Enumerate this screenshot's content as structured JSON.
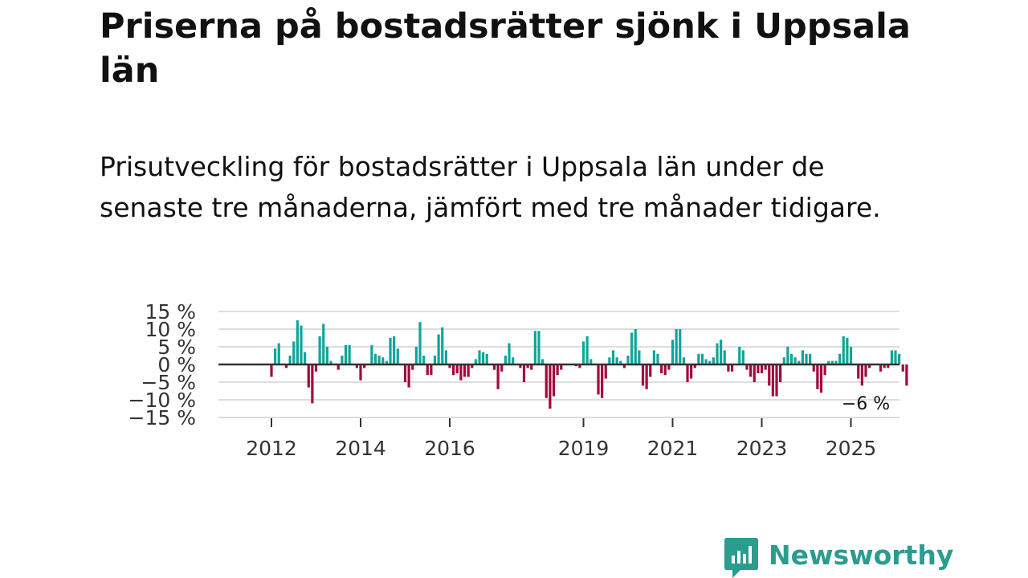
{
  "title": "Priserna på bostadsrätter sjönk i Uppsala län",
  "subtitle": "Prisutveckling för bostadsrätter i Uppsala län under de senaste tre månaderna, jämfört med tre månader tidigare.",
  "brand": {
    "name": "Newsworthy",
    "color": "#2a9d8f"
  },
  "colors": {
    "positive": "#10a59a",
    "negative": "#a3063e",
    "zero_line": "#333333",
    "grid": "#dddddd"
  },
  "chart_data": {
    "type": "bar",
    "title": "Priserna på bostadsrätter sjönk i Uppsala län",
    "xlabel": "",
    "ylabel": "",
    "y_unit": "%",
    "ylim": [
      -15,
      15
    ],
    "y_ticks": [
      15,
      10,
      5,
      0,
      -5,
      -10,
      -15
    ],
    "y_tick_labels": [
      "15 %",
      "10 %",
      "5 %",
      "0 %",
      "−5 %",
      "−10 %",
      "−15 %"
    ],
    "x_ticks": [
      2012,
      2014,
      2016,
      2019,
      2021,
      2023,
      2025
    ],
    "x_tick_labels": [
      "2012",
      "2014",
      "2016",
      "2019",
      "2021",
      "2023",
      "2025"
    ],
    "start": {
      "year": 2011,
      "month": 1
    },
    "frequency": "monthly",
    "end_label": "−6 %",
    "values": [
      0,
      0,
      0,
      0,
      0,
      0,
      0,
      0,
      0,
      0,
      0,
      0,
      -3.5,
      4.5,
      6,
      0,
      -1,
      2.5,
      6.5,
      12.5,
      11,
      3.5,
      -6.5,
      -11,
      -2,
      8,
      11.5,
      5,
      1,
      0,
      -1.5,
      2.5,
      5.5,
      5.5,
      0,
      -1,
      -4.5,
      -1,
      0,
      5.5,
      3,
      2.5,
      2,
      1,
      7.5,
      8,
      4.5,
      0,
      -5,
      -6.5,
      -1.5,
      5,
      12,
      2.5,
      -3,
      -3,
      2.5,
      8.5,
      10.5,
      4,
      -1,
      -3,
      -2.5,
      -4.5,
      -3.5,
      -3.5,
      -1,
      1.5,
      4,
      3.5,
      3,
      0,
      -1.5,
      -7,
      -2,
      2.5,
      6,
      2,
      0,
      -1,
      -5,
      -1,
      -1.5,
      9.5,
      9.5,
      1.5,
      -9.5,
      -12.5,
      -9,
      -3,
      -1.5,
      0,
      0,
      0,
      -0.5,
      -1,
      6.5,
      8,
      1.5,
      0,
      -8.5,
      -9.5,
      -4,
      2,
      4,
      2,
      1,
      -1,
      2.5,
      9,
      10,
      4,
      -6,
      -7,
      -3.5,
      4,
      3,
      -2.5,
      -3,
      -1.5,
      7,
      10,
      10,
      2,
      -5,
      -4,
      -1,
      3,
      3,
      1.5,
      1,
      2,
      6,
      7,
      4,
      -2,
      -2,
      0,
      5,
      4,
      -1.5,
      -3.5,
      -5,
      -2.5,
      -2.5,
      -1.5,
      -6,
      -9,
      -9,
      -5,
      2,
      5,
      3,
      2,
      1,
      4,
      3,
      3,
      -2,
      -7,
      -8,
      -3,
      1,
      1,
      1,
      3,
      8,
      7.5,
      5,
      0,
      -4,
      -6,
      -3.5,
      -1,
      0,
      0,
      -2,
      -1,
      -1,
      4,
      4,
      3,
      -2,
      -6
    ]
  }
}
